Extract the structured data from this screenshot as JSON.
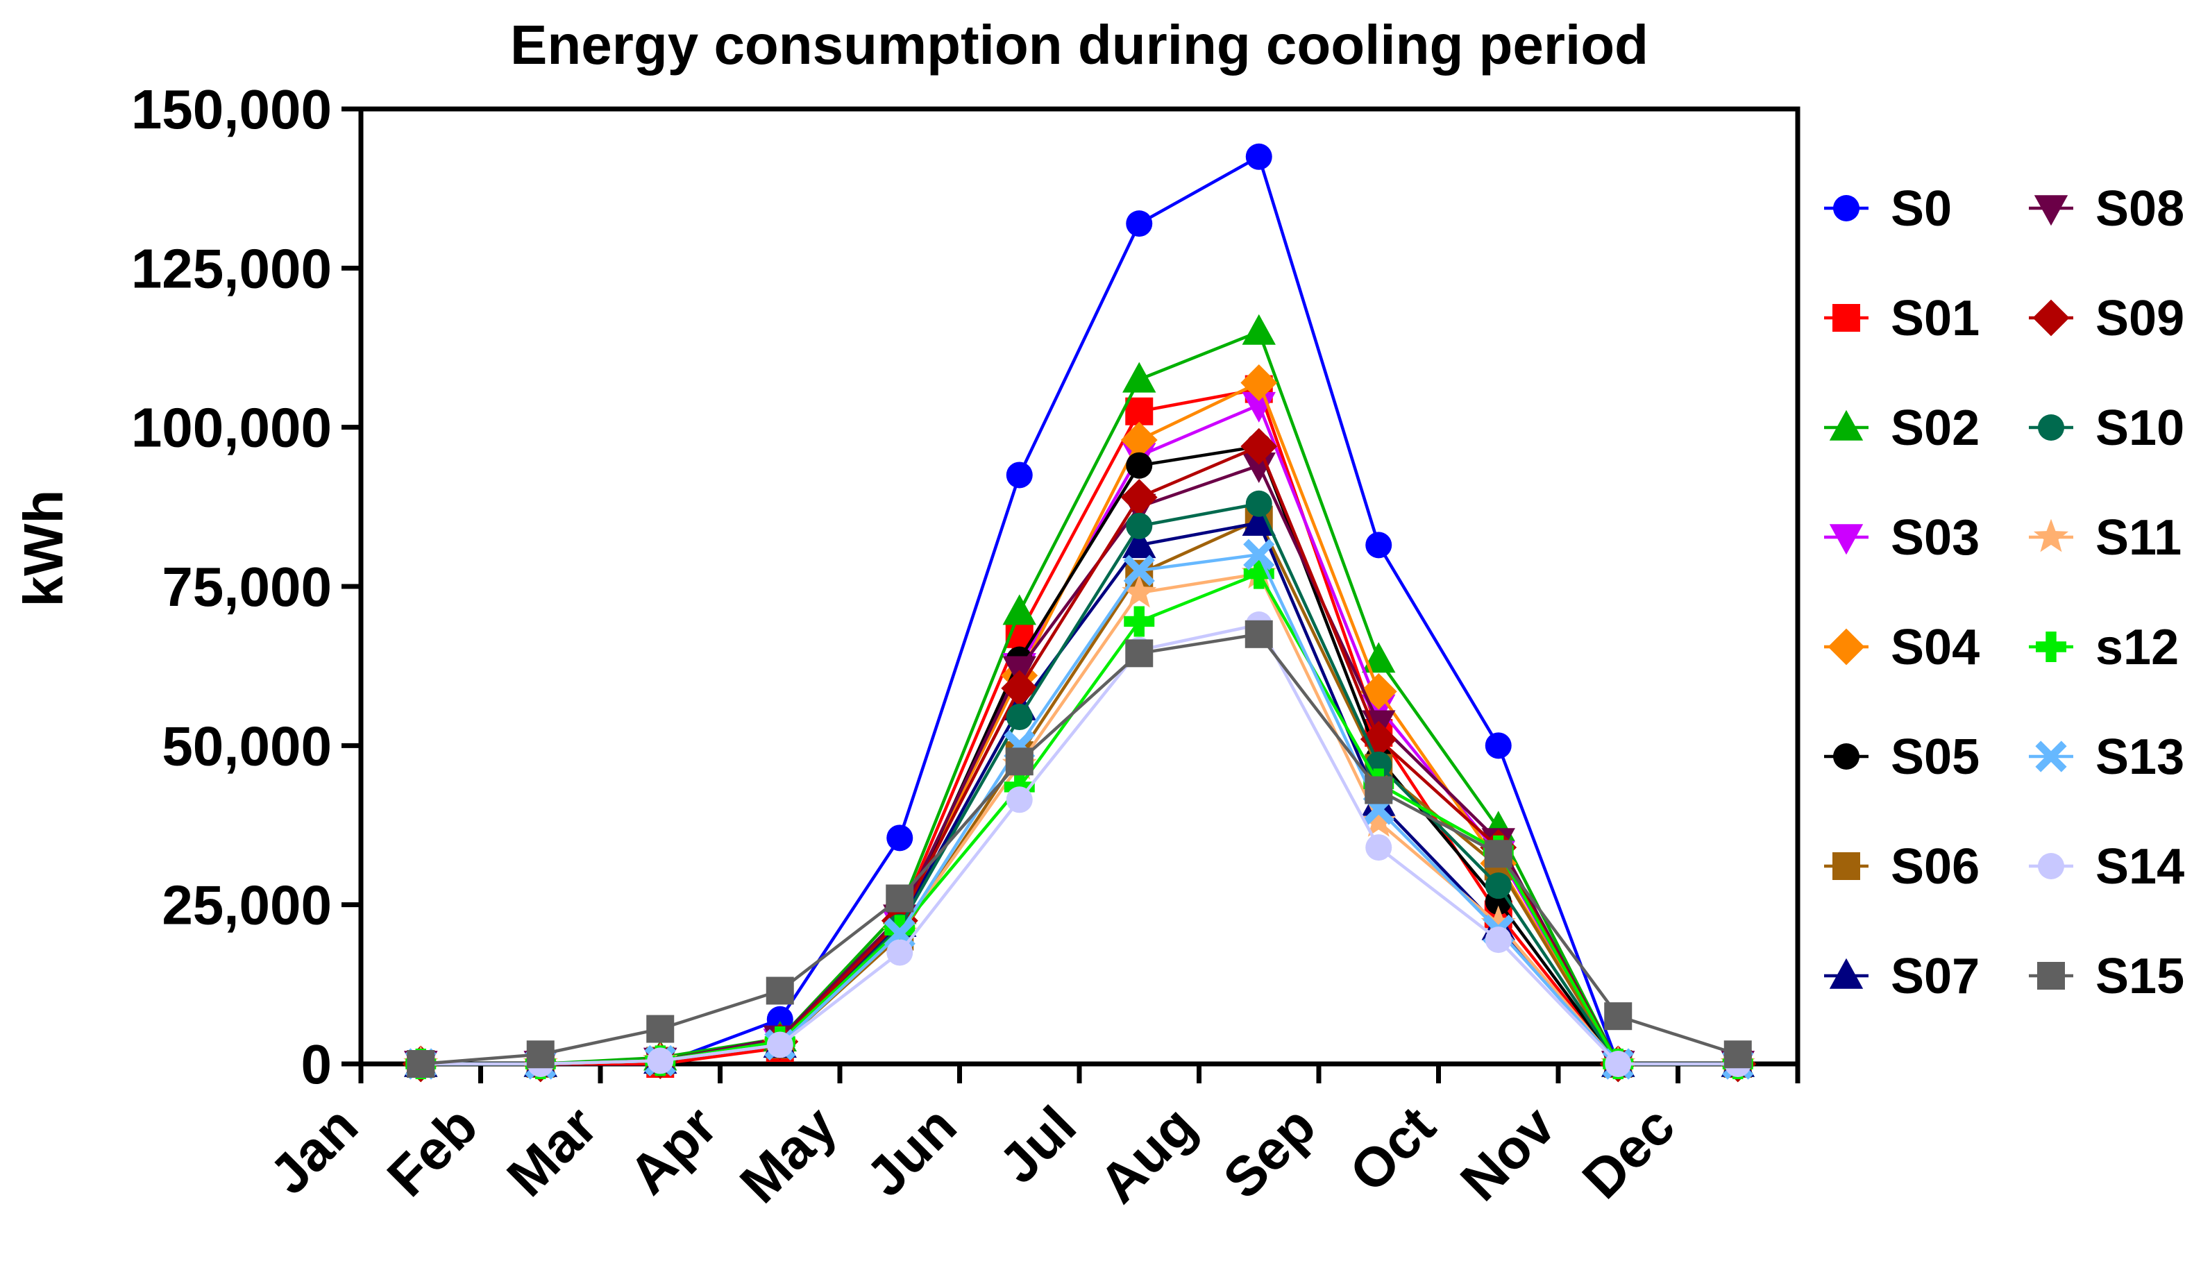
{
  "chart_data": {
    "type": "line",
    "title": "Energy consumption during cooling period",
    "xlabel": "",
    "ylabel": "kWh",
    "ylim": [
      0,
      150000
    ],
    "yticks": [
      0,
      25000,
      50000,
      75000,
      100000,
      125000,
      150000
    ],
    "ytick_labels": [
      "0",
      "25,000",
      "50,000",
      "75,000",
      "100,000",
      "125,000",
      "150,000"
    ],
    "categories": [
      "Jan",
      "Feb",
      "Mar",
      "Apr",
      "May",
      "Jun",
      "Jul",
      "Aug",
      "Sep",
      "Oct",
      "Nov",
      "Dec"
    ],
    "grid": false,
    "legend_position": "right",
    "series": [
      {
        "name": "S0",
        "color": "#0000ff",
        "marker": "circle",
        "values": [
          0,
          0,
          0,
          7000,
          35500,
          92500,
          132000,
          142500,
          81500,
          50000,
          0,
          0
        ]
      },
      {
        "name": "S01",
        "color": "#ff0000",
        "marker": "square",
        "values": [
          0,
          0,
          0,
          2500,
          23000,
          67500,
          102500,
          106000,
          52000,
          23500,
          0,
          0
        ]
      },
      {
        "name": "S02",
        "color": "#00b000",
        "marker": "triangle-up",
        "values": [
          0,
          0,
          1000,
          4000,
          24000,
          71000,
          107500,
          115000,
          63500,
          37000,
          0,
          0
        ]
      },
      {
        "name": "S03",
        "color": "#cc00ff",
        "marker": "triangle-down",
        "values": [
          0,
          0,
          500,
          3500,
          22000,
          62500,
          95500,
          103500,
          56000,
          33000,
          0,
          0
        ]
      },
      {
        "name": "S04",
        "color": "#ff8800",
        "marker": "diamond",
        "values": [
          0,
          0,
          500,
          3500,
          22500,
          61000,
          98000,
          107000,
          58500,
          31500,
          0,
          0
        ]
      },
      {
        "name": "S05",
        "color": "#000000",
        "marker": "circle",
        "values": [
          0,
          0,
          500,
          3000,
          22000,
          63500,
          94000,
          97000,
          48000,
          25500,
          0,
          0
        ]
      },
      {
        "name": "S06",
        "color": "#a0620a",
        "marker": "square",
        "values": [
          0,
          0,
          500,
          3000,
          20000,
          48500,
          77000,
          85500,
          46500,
          31000,
          0,
          0
        ]
      },
      {
        "name": "S07",
        "color": "#000080",
        "marker": "triangle-up",
        "values": [
          0,
          0,
          500,
          3000,
          22000,
          56000,
          81500,
          85000,
          41000,
          21500,
          0,
          0
        ]
      },
      {
        "name": "S08",
        "color": "#6b0047",
        "marker": "triangle-down",
        "values": [
          0,
          0,
          500,
          4000,
          23000,
          62000,
          87500,
          94000,
          53500,
          35000,
          0,
          0
        ]
      },
      {
        "name": "S09",
        "color": "#b20000",
        "marker": "diamond",
        "values": [
          0,
          0,
          500,
          3500,
          22500,
          59000,
          89000,
          97000,
          51000,
          34000,
          0,
          0
        ]
      },
      {
        "name": "S10",
        "color": "#006a4e",
        "marker": "circle",
        "values": [
          0,
          0,
          500,
          3000,
          21500,
          54500,
          84500,
          88000,
          47000,
          28000,
          0,
          0
        ]
      },
      {
        "name": "S11",
        "color": "#ffb070",
        "marker": "star",
        "values": [
          0,
          0,
          500,
          3000,
          20500,
          47000,
          74000,
          77000,
          38000,
          22000,
          0,
          0
        ]
      },
      {
        "name": "s12",
        "color": "#00ee00",
        "marker": "plus",
        "values": [
          0,
          0,
          500,
          3500,
          21000,
          43500,
          69500,
          77000,
          44000,
          33500,
          0,
          0
        ]
      },
      {
        "name": "S13",
        "color": "#66b8ff",
        "marker": "x",
        "values": [
          0,
          0,
          500,
          3000,
          20500,
          50000,
          77500,
          80000,
          40000,
          21000,
          0,
          0
        ]
      },
      {
        "name": "S14",
        "color": "#c8c8ff",
        "marker": "circle",
        "values": [
          0,
          0,
          500,
          3000,
          17500,
          41500,
          65000,
          69000,
          34000,
          19500,
          0,
          0
        ]
      },
      {
        "name": "S15",
        "color": "#606060",
        "marker": "square",
        "values": [
          0,
          1500,
          5500,
          11500,
          26000,
          47500,
          64500,
          67500,
          43000,
          33000,
          7500,
          1500
        ]
      }
    ]
  }
}
